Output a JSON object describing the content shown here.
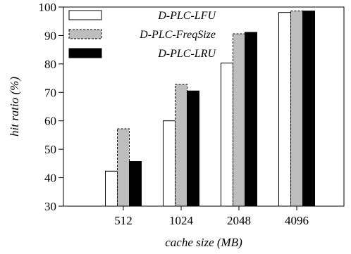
{
  "chart_data": {
    "type": "bar",
    "categories": [
      "512",
      "1024",
      "2048",
      "4096"
    ],
    "series": [
      {
        "name": "D-PLC-LFU",
        "values": [
          42.3,
          60.0,
          80.3,
          98.1
        ],
        "fill": "#ffffff",
        "stroke": "#000000",
        "dashed": false
      },
      {
        "name": "D-PLC-FreqSize",
        "values": [
          57.2,
          72.8,
          90.6,
          98.6
        ],
        "fill": "#bdbdbd",
        "stroke": "#000000",
        "dashed": true
      },
      {
        "name": "D-PLC-LRU",
        "values": [
          45.7,
          70.5,
          91.1,
          98.6
        ],
        "fill": "#000000",
        "stroke": "#000000",
        "dashed": false
      }
    ],
    "xlabel": "cache size (MB)",
    "ylabel": "hit ratio (%)",
    "ylim": [
      30,
      100
    ],
    "yticks": [
      30,
      40,
      50,
      60,
      70,
      80,
      90,
      100
    ],
    "grid": false,
    "legend_position": "top-left"
  }
}
